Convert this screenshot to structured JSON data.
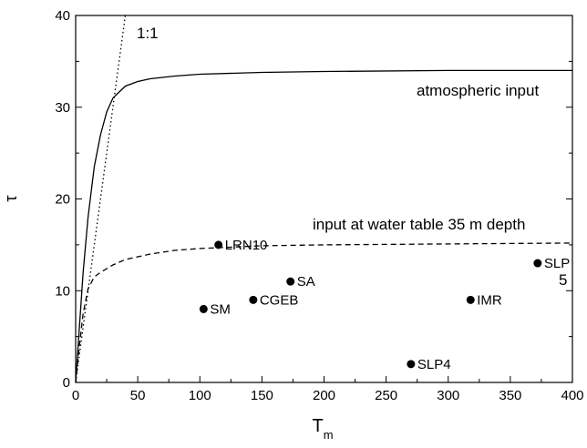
{
  "chart_data": {
    "type": "scatter",
    "xlabel": "T",
    "xlabel_sub": "m",
    "ylabel": "τ",
    "xlim": [
      0,
      400
    ],
    "ylim": [
      0,
      40
    ],
    "xticks": [
      0,
      50,
      100,
      150,
      200,
      250,
      300,
      350,
      400
    ],
    "yticks": [
      0,
      10,
      20,
      30,
      40
    ],
    "grid": false,
    "curves": [
      {
        "name": "atmospheric input",
        "style": "solid",
        "x": [
          0,
          3,
          6,
          10,
          15,
          20,
          25,
          30,
          40,
          50,
          60,
          80,
          100,
          150,
          200,
          300,
          400
        ],
        "y": [
          0,
          6,
          12,
          18,
          23.5,
          27,
          29.5,
          31,
          32.3,
          32.8,
          33.1,
          33.4,
          33.6,
          33.8,
          33.9,
          34,
          34
        ]
      },
      {
        "name": "input at water table 35 m depth",
        "style": "dashed",
        "x": [
          0,
          3,
          6,
          10,
          15,
          20,
          30,
          40,
          60,
          80,
          100,
          150,
          200,
          300,
          400
        ],
        "y": [
          0,
          4,
          7.5,
          10.2,
          11.5,
          12,
          12.8,
          13.4,
          14,
          14.4,
          14.6,
          14.9,
          15,
          15.1,
          15.2
        ]
      },
      {
        "name": "1:1",
        "style": "dotted",
        "x": [
          0,
          40
        ],
        "y": [
          0,
          40
        ]
      }
    ],
    "points": [
      {
        "label": "LRN10",
        "x": 115,
        "y": 15
      },
      {
        "label": "SA",
        "x": 173,
        "y": 11
      },
      {
        "label": "CGEB",
        "x": 143,
        "y": 9
      },
      {
        "label": "SM",
        "x": 103,
        "y": 8
      },
      {
        "label": "SLP",
        "x": 372,
        "y": 13
      },
      {
        "label": "IMR",
        "x": 318,
        "y": 9
      },
      {
        "label": "SLP4",
        "x": 270,
        "y": 2
      }
    ],
    "annotations": [
      {
        "id": "one_to_one",
        "text": "1:1"
      },
      {
        "id": "atmo",
        "text": "atmospheric input"
      },
      {
        "id": "water",
        "text": "input at water table 35 m depth"
      },
      {
        "id": "five",
        "text": "5"
      }
    ]
  }
}
